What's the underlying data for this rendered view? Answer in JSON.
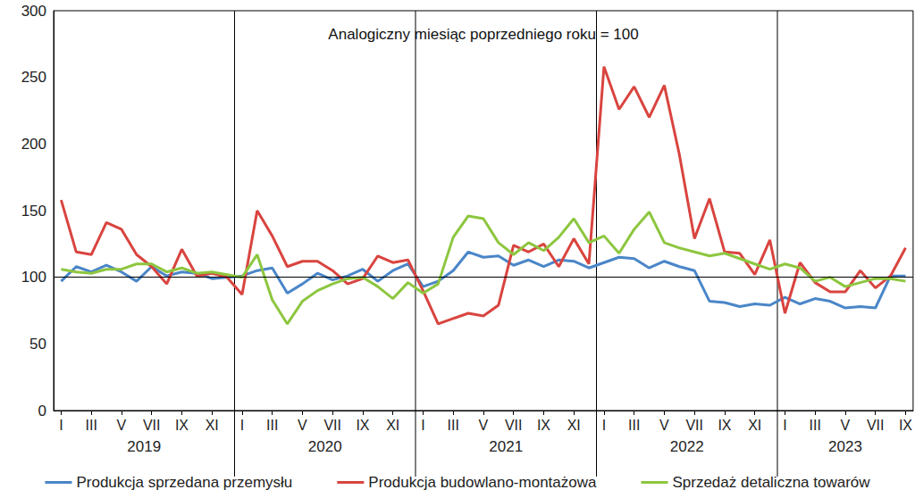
{
  "chart_data": {
    "type": "line",
    "annotation": "Analogiczny miesiąc poprzedniego roku = 100",
    "categories": [
      "I",
      null,
      "III",
      null,
      "V",
      null,
      "VII",
      null,
      "IX",
      null,
      "XI",
      null,
      "I",
      null,
      "III",
      null,
      "V",
      null,
      "VII",
      null,
      "IX",
      null,
      "XI",
      null,
      "I",
      null,
      "III",
      null,
      "V",
      null,
      "VII",
      null,
      "IX",
      null,
      "XI",
      null,
      "I",
      null,
      "III",
      null,
      "V",
      null,
      "VII",
      null,
      "IX",
      null,
      "XI",
      null,
      "I",
      null,
      "III",
      null,
      "V",
      null,
      "VII",
      null,
      "IX"
    ],
    "x_groups": [
      "2019",
      "2020",
      "2021",
      "2022",
      "2023"
    ],
    "ylim": [
      0,
      300
    ],
    "yticks": [
      0,
      50,
      100,
      150,
      200,
      250,
      300
    ],
    "reference_line": 100,
    "grid": false,
    "legend": "bottom",
    "series": [
      {
        "name": "Produkcja sprzedana przemysłu",
        "color": "#4a86c8",
        "values": [
          97,
          108,
          104,
          109,
          104,
          97,
          108,
          101,
          104,
          103,
          99,
          100,
          101,
          105,
          107,
          88,
          95,
          103,
          98,
          101,
          106,
          97,
          105,
          110,
          93,
          97,
          105,
          119,
          115,
          116,
          109,
          113,
          108,
          113,
          112,
          107,
          111,
          115,
          114,
          107,
          112,
          108,
          105,
          82,
          81,
          78,
          80,
          79,
          85,
          80,
          84,
          82,
          77,
          78,
          77,
          101,
          101
        ]
      },
      {
        "name": "Produkcja budowlano-montażowa",
        "color": "#d9443f",
        "values": [
          158,
          119,
          117,
          141,
          136,
          117,
          108,
          95,
          121,
          101,
          103,
          100,
          87,
          150,
          131,
          108,
          112,
          112,
          105,
          95,
          99,
          116,
          111,
          113,
          90,
          65,
          69,
          73,
          71,
          79,
          124,
          119,
          125,
          108,
          129,
          110,
          258,
          226,
          243,
          220,
          244,
          192,
          129,
          159,
          119,
          118,
          102,
          128,
          73,
          111,
          96,
          89,
          89,
          105,
          92,
          101,
          122
        ]
      },
      {
        "name": "Sprzedaż detaliczna towarów",
        "color": "#8dc63f",
        "values": [
          106,
          104,
          103,
          106,
          106,
          110,
          110,
          104,
          107,
          103,
          104,
          102,
          100,
          117,
          83,
          65,
          82,
          90,
          95,
          99,
          100,
          93,
          84,
          96,
          88,
          95,
          130,
          146,
          144,
          126,
          117,
          126,
          120,
          130,
          144,
          126,
          131,
          118,
          136,
          149,
          126,
          122,
          119,
          116,
          118,
          114,
          110,
          106,
          110,
          107,
          97,
          100,
          93,
          96,
          99,
          99,
          97
        ]
      }
    ]
  }
}
